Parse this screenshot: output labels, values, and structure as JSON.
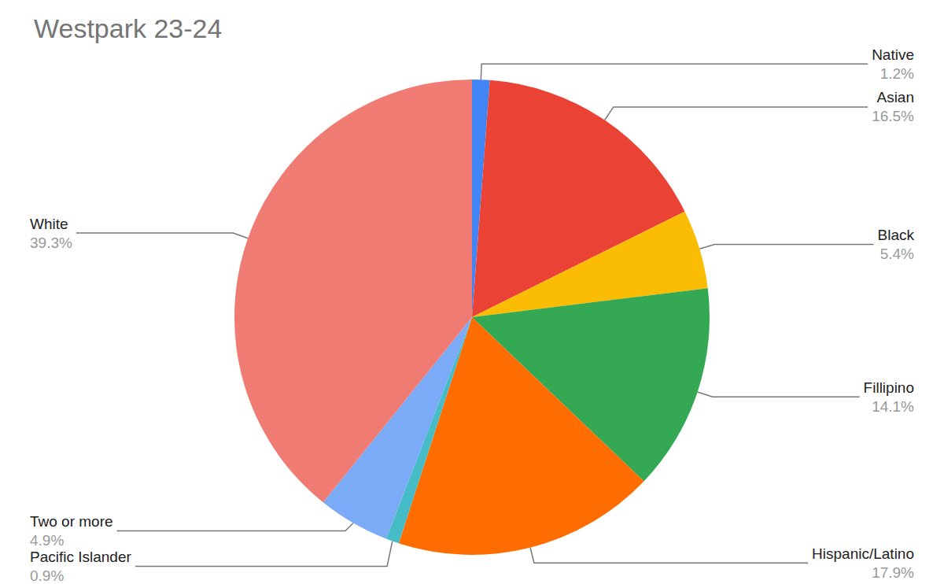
{
  "chart_data": {
    "type": "pie",
    "title": "Westpark 23-24",
    "categories": [
      "Native",
      "Asian",
      "Black",
      "Fillipino",
      "Hispanic/Latino",
      "Pacific Islander",
      "Two or more",
      "White"
    ],
    "values": [
      1.2,
      16.5,
      5.4,
      14.1,
      17.9,
      0.9,
      4.9,
      39.3
    ],
    "value_labels": [
      "1.2%",
      "16.5%",
      "5.4%",
      "14.1%",
      "17.9%",
      "0.9%",
      "4.9%",
      "39.3%"
    ],
    "colors": [
      "#4285f4",
      "#ea4335",
      "#fbbc04",
      "#34a853",
      "#ff6d01",
      "#46bdc6",
      "#7baaf7",
      "#f07b72"
    ],
    "data_labels": true
  }
}
